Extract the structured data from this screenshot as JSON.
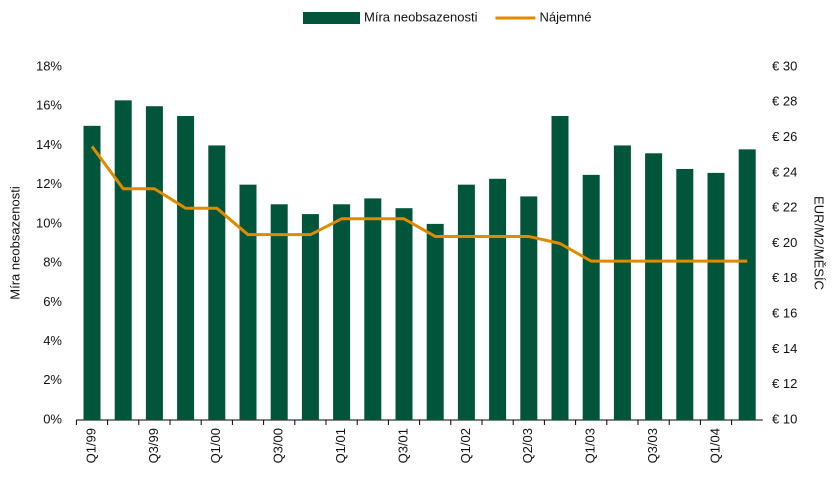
{
  "chart_data": {
    "type": "bar_line",
    "legend_position": "top",
    "y_label": "Míra neobsazenosti",
    "y2_label": "EUR/M2/MĚSÍC",
    "categories": [
      "Q1/99",
      null,
      "Q3/99",
      null,
      "Q1/00",
      null,
      "Q3/00",
      null,
      "Q1/01",
      null,
      "Q3/01",
      null,
      "Q1/02",
      null,
      "Q2/03",
      null,
      "Q1/03",
      null,
      "Q3/03",
      null,
      "Q1/04",
      null
    ],
    "series": [
      {
        "name": "Míra neobsazenosti",
        "type": "bar",
        "color": "#00553a",
        "values": [
          15.0,
          16.3,
          16.0,
          15.5,
          14.0,
          12.0,
          11.0,
          10.5,
          11.0,
          11.3,
          10.8,
          10.0,
          12.0,
          12.3,
          11.4,
          15.5,
          12.5,
          14.0,
          13.6,
          12.8,
          12.6,
          13.8
        ]
      },
      {
        "name": "Nájemné",
        "type": "line",
        "axis": "y2",
        "color": "#e08a00",
        "values": [
          25.5,
          23.1,
          23.1,
          22.0,
          22.0,
          20.5,
          20.5,
          20.5,
          21.4,
          21.4,
          21.4,
          20.4,
          20.4,
          20.4,
          20.4,
          20.0,
          19.0,
          19.0,
          19.0,
          19.0,
          19.0,
          19.0
        ]
      }
    ],
    "ylim": [
      0,
      18
    ],
    "yticks": [
      {
        "value": 0,
        "label": "0%"
      },
      {
        "value": 2,
        "label": "2%"
      },
      {
        "value": 4,
        "label": "4%"
      },
      {
        "value": 6,
        "label": "6%"
      },
      {
        "value": 8,
        "label": "8%"
      },
      {
        "value": 10,
        "label": "10%"
      },
      {
        "value": 12,
        "label": "12%"
      },
      {
        "value": 14,
        "label": "14%"
      },
      {
        "value": 16,
        "label": "16%"
      },
      {
        "value": 18,
        "label": "18%"
      }
    ],
    "y2lim": [
      10,
      30
    ],
    "y2ticks": [
      {
        "value": 10,
        "label": "€ 10"
      },
      {
        "value": 12,
        "label": "€ 12"
      },
      {
        "value": 14,
        "label": "€ 14"
      },
      {
        "value": 16,
        "label": "€ 16"
      },
      {
        "value": 18,
        "label": "€ 18"
      },
      {
        "value": 20,
        "label": "€ 20"
      },
      {
        "value": 22,
        "label": "€ 22"
      },
      {
        "value": 24,
        "label": "€ 24"
      },
      {
        "value": 26,
        "label": "€ 26"
      },
      {
        "value": 28,
        "label": "€ 28"
      },
      {
        "value": 30,
        "label": "€ 30"
      }
    ]
  }
}
